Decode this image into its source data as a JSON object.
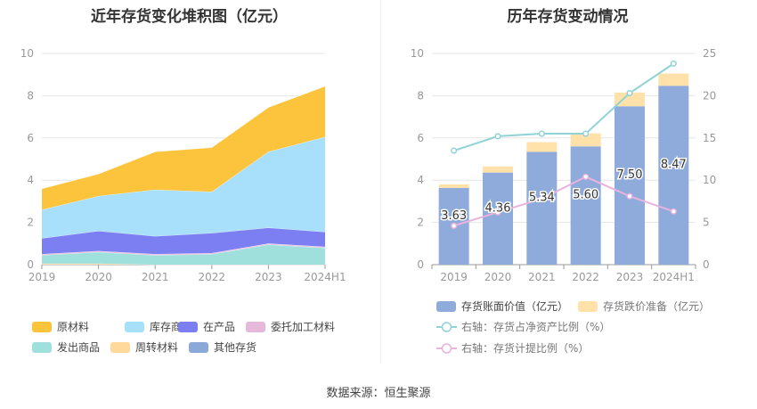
{
  "source_text": "数据来源：恒生聚源",
  "chart_data": [
    {
      "type": "area",
      "title": "近年存货变化堆积图（亿元）",
      "categories": [
        "2019",
        "2020",
        "2021",
        "2022",
        "2023",
        "2024H1"
      ],
      "ylim": [
        0,
        10
      ],
      "yticks": [
        0,
        2,
        4,
        6,
        8,
        10
      ],
      "grid": true,
      "legend_position": "bottom",
      "series": [
        {
          "name": "原材料",
          "color": "#fcc43d",
          "values": [
            1.0,
            1.05,
            1.8,
            2.1,
            2.1,
            2.4
          ]
        },
        {
          "name": "库存商品",
          "color": "#a8dffa",
          "values": [
            1.35,
            1.65,
            2.2,
            1.95,
            3.6,
            4.5
          ]
        },
        {
          "name": "在产品",
          "color": "#7b7ff2",
          "values": [
            0.75,
            0.95,
            0.85,
            0.95,
            0.75,
            0.7
          ]
        },
        {
          "name": "委托加工材料",
          "color": "#e6b8dc",
          "values": [
            0.05,
            0.05,
            0.05,
            0.05,
            0.05,
            0.05
          ]
        },
        {
          "name": "发出商品",
          "color": "#9fe0dd",
          "values": [
            0.4,
            0.55,
            0.45,
            0.5,
            0.95,
            0.8
          ]
        },
        {
          "name": "周转材料",
          "color": "#ffd89c",
          "values": [
            0.05,
            0.05,
            0.0,
            0.0,
            0.0,
            0.0
          ]
        },
        {
          "name": "其他存货",
          "color": "#8aa9d8",
          "values": [
            0.0,
            0.0,
            0.0,
            0.0,
            0.0,
            0.0
          ]
        }
      ]
    },
    {
      "type": "bar",
      "title": "历年存货变动情况",
      "categories": [
        "2019",
        "2020",
        "2021",
        "2022",
        "2023",
        "2024H1"
      ],
      "ylim": [
        0,
        10
      ],
      "yticks": [
        0,
        2,
        4,
        6,
        8,
        10
      ],
      "y2lim": [
        0,
        25
      ],
      "y2ticks": [
        0,
        5,
        10,
        15,
        20,
        25
      ],
      "grid": true,
      "legend_position": "bottom",
      "series": [
        {
          "name": "存货账面价值（亿元）",
          "color": "#8eabdb",
          "values": [
            3.63,
            4.36,
            5.34,
            5.6,
            7.5,
            8.47
          ],
          "data_labels": [
            "3.63",
            "4.36",
            "5.34",
            "5.60",
            "7.50",
            "8.47"
          ]
        },
        {
          "name": "存货跌价准备（亿元）",
          "color": "#ffe1a9",
          "values": [
            0.17,
            0.29,
            0.46,
            0.62,
            0.65,
            0.58
          ]
        }
      ],
      "line_series": [
        {
          "name": "右轴：存货占净资产比例（%）",
          "color": "#8fd3d6",
          "values": [
            13.5,
            15.2,
            15.5,
            15.5,
            20.3,
            23.8
          ]
        },
        {
          "name": "右轴：存货计提比例（%）",
          "color": "#e9b3de",
          "values": [
            4.6,
            6.2,
            7.8,
            10.4,
            8.1,
            6.3
          ]
        }
      ]
    }
  ]
}
